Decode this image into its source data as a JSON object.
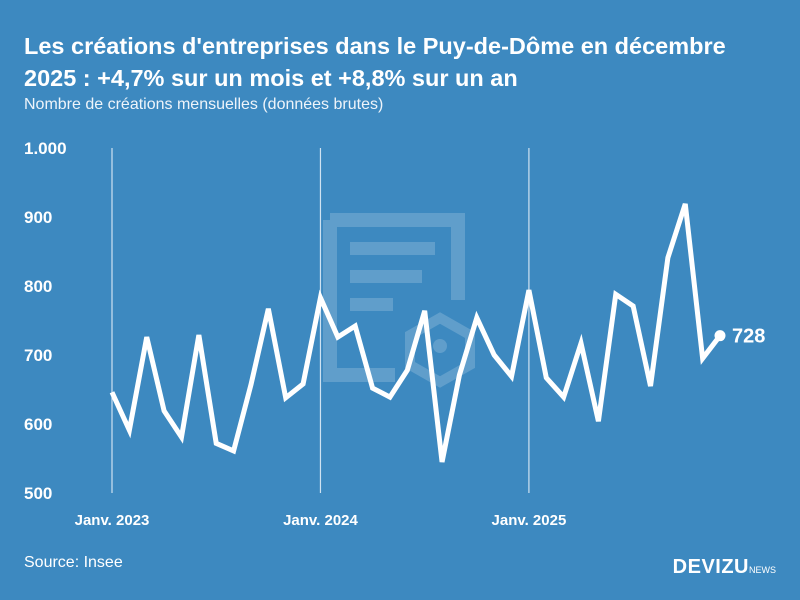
{
  "title": "Les créations d'entreprises dans le Puy-de-Dôme en décembre 2025 : +4,7% sur un mois et +8,8% sur un an",
  "subtitle": "Nombre de créations mensuelles (données brutes)",
  "source": "Source: Insee",
  "brand": {
    "name": "DEVIZU",
    "suffix": "NEWS"
  },
  "chart_data": {
    "type": "line",
    "title": "Les créations d'entreprises dans le Puy-de-Dôme en décembre 2025 : +4,7% sur un mois et +8,8% sur un an",
    "ylabel": "Nombre de créations mensuelles (données brutes)",
    "ylim": [
      500,
      1000
    ],
    "yticks": [
      500,
      600,
      700,
      800,
      900,
      1000
    ],
    "ytick_labels": [
      "500",
      "600",
      "700",
      "800",
      "900",
      "1.000"
    ],
    "xtick_labels": [
      "Janv. 2023",
      "Janv. 2024",
      "Janv. 2025"
    ],
    "x_start": "2023-01",
    "x_end": "2025-12",
    "values": [
      646,
      591,
      726,
      619,
      581,
      729,
      572,
      561,
      657,
      767,
      638,
      658,
      783,
      726,
      742,
      652,
      639,
      678,
      764,
      545,
      671,
      754,
      700,
      669,
      794,
      667,
      639,
      717,
      604,
      788,
      771,
      655,
      841,
      919,
      695,
      728
    ],
    "last_label": "728",
    "grid": "vertical lines at January",
    "line_color": "#ffffff",
    "background": "#3d89c0"
  }
}
